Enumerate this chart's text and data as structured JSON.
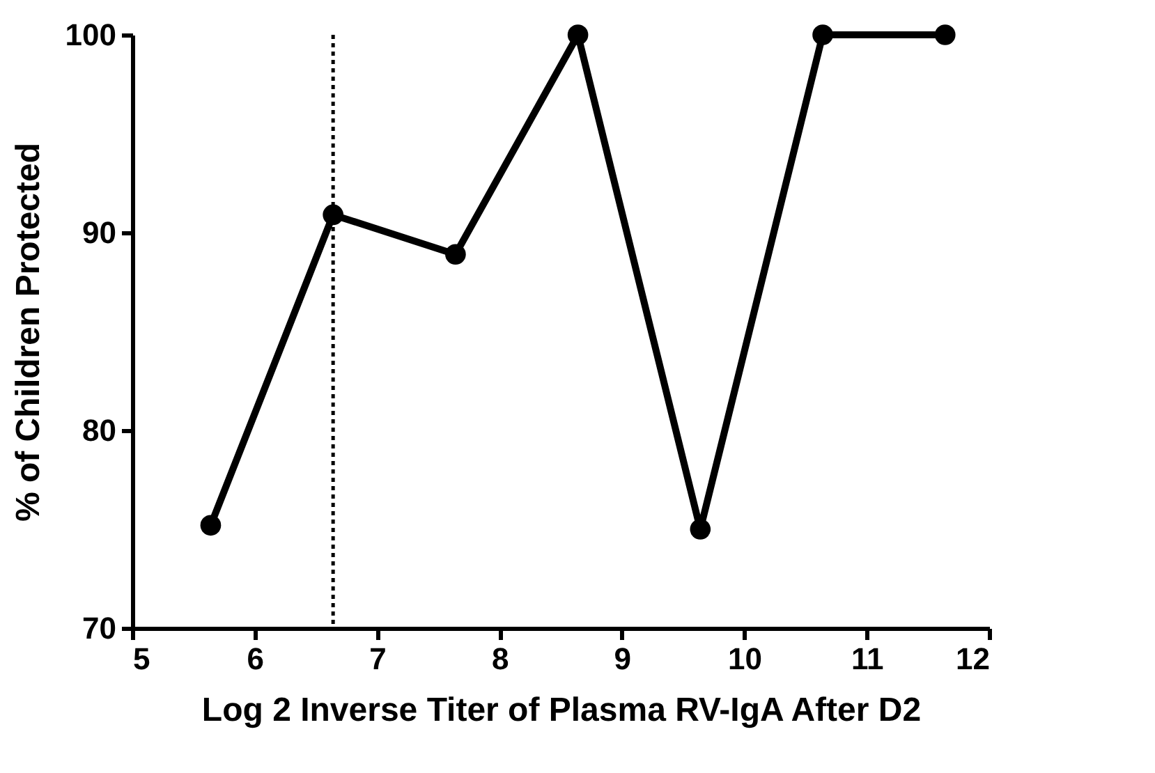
{
  "chart_data": {
    "type": "line",
    "xlabel": "Log 2 Inverse Titer of Plasma RV-IgA After D2",
    "ylabel": "% of Children Protected",
    "x": [
      5.64,
      6.64,
      7.64,
      8.64,
      9.64,
      10.64,
      11.64
    ],
    "series": [
      {
        "color": "#000000",
        "values": [
          75.2,
          90.9,
          88.9,
          100,
          75,
          100,
          100
        ]
      }
    ],
    "xlim": [
      5,
      12
    ],
    "xticks": [
      5,
      6,
      7,
      8,
      9,
      10,
      11,
      12
    ],
    "ylim": [
      70,
      100
    ],
    "yticks": [
      70,
      80,
      90,
      100
    ],
    "marker": "circle",
    "line_style": "solid",
    "grid": false,
    "ref_lines": [
      {
        "axis": "x",
        "value": 6.64,
        "line_style": "dotted",
        "color": "#000000"
      }
    ]
  }
}
